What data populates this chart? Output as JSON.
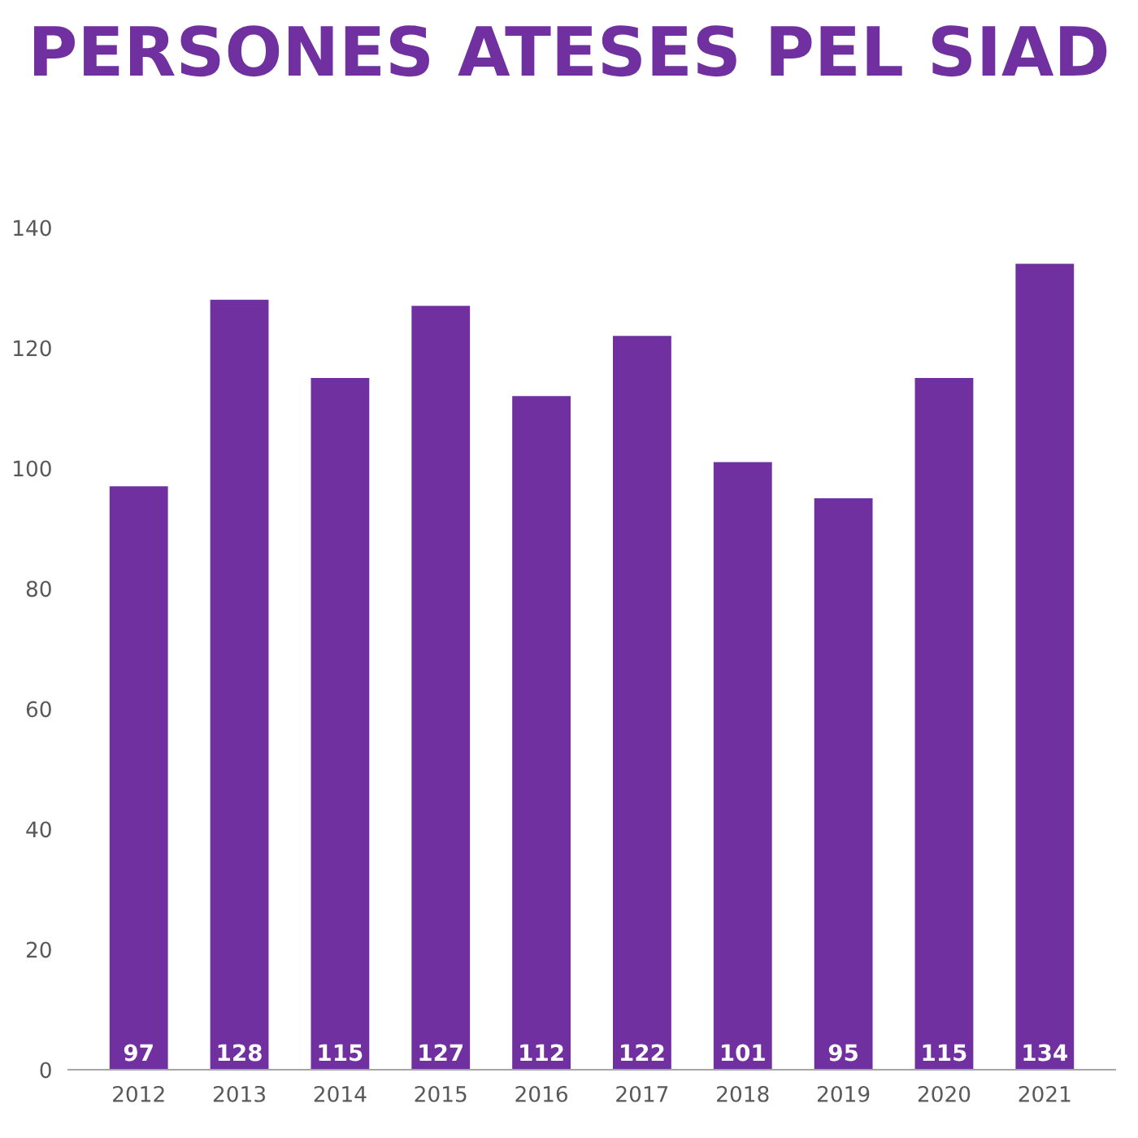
{
  "chart_data": {
    "type": "bar",
    "title": "PERSONES ATESES PEL SIAD",
    "categories": [
      "2012",
      "2013",
      "2014",
      "2015",
      "2016",
      "2017",
      "2018",
      "2019",
      "2020",
      "2021"
    ],
    "values": [
      97,
      128,
      115,
      127,
      112,
      122,
      101,
      95,
      115,
      134
    ],
    "color": "#7030a0",
    "data_labels": true,
    "grid": false,
    "legend": false,
    "ylim": [
      0,
      140
    ],
    "yticks": [
      0,
      20,
      40,
      60,
      80,
      100,
      120,
      140
    ]
  }
}
